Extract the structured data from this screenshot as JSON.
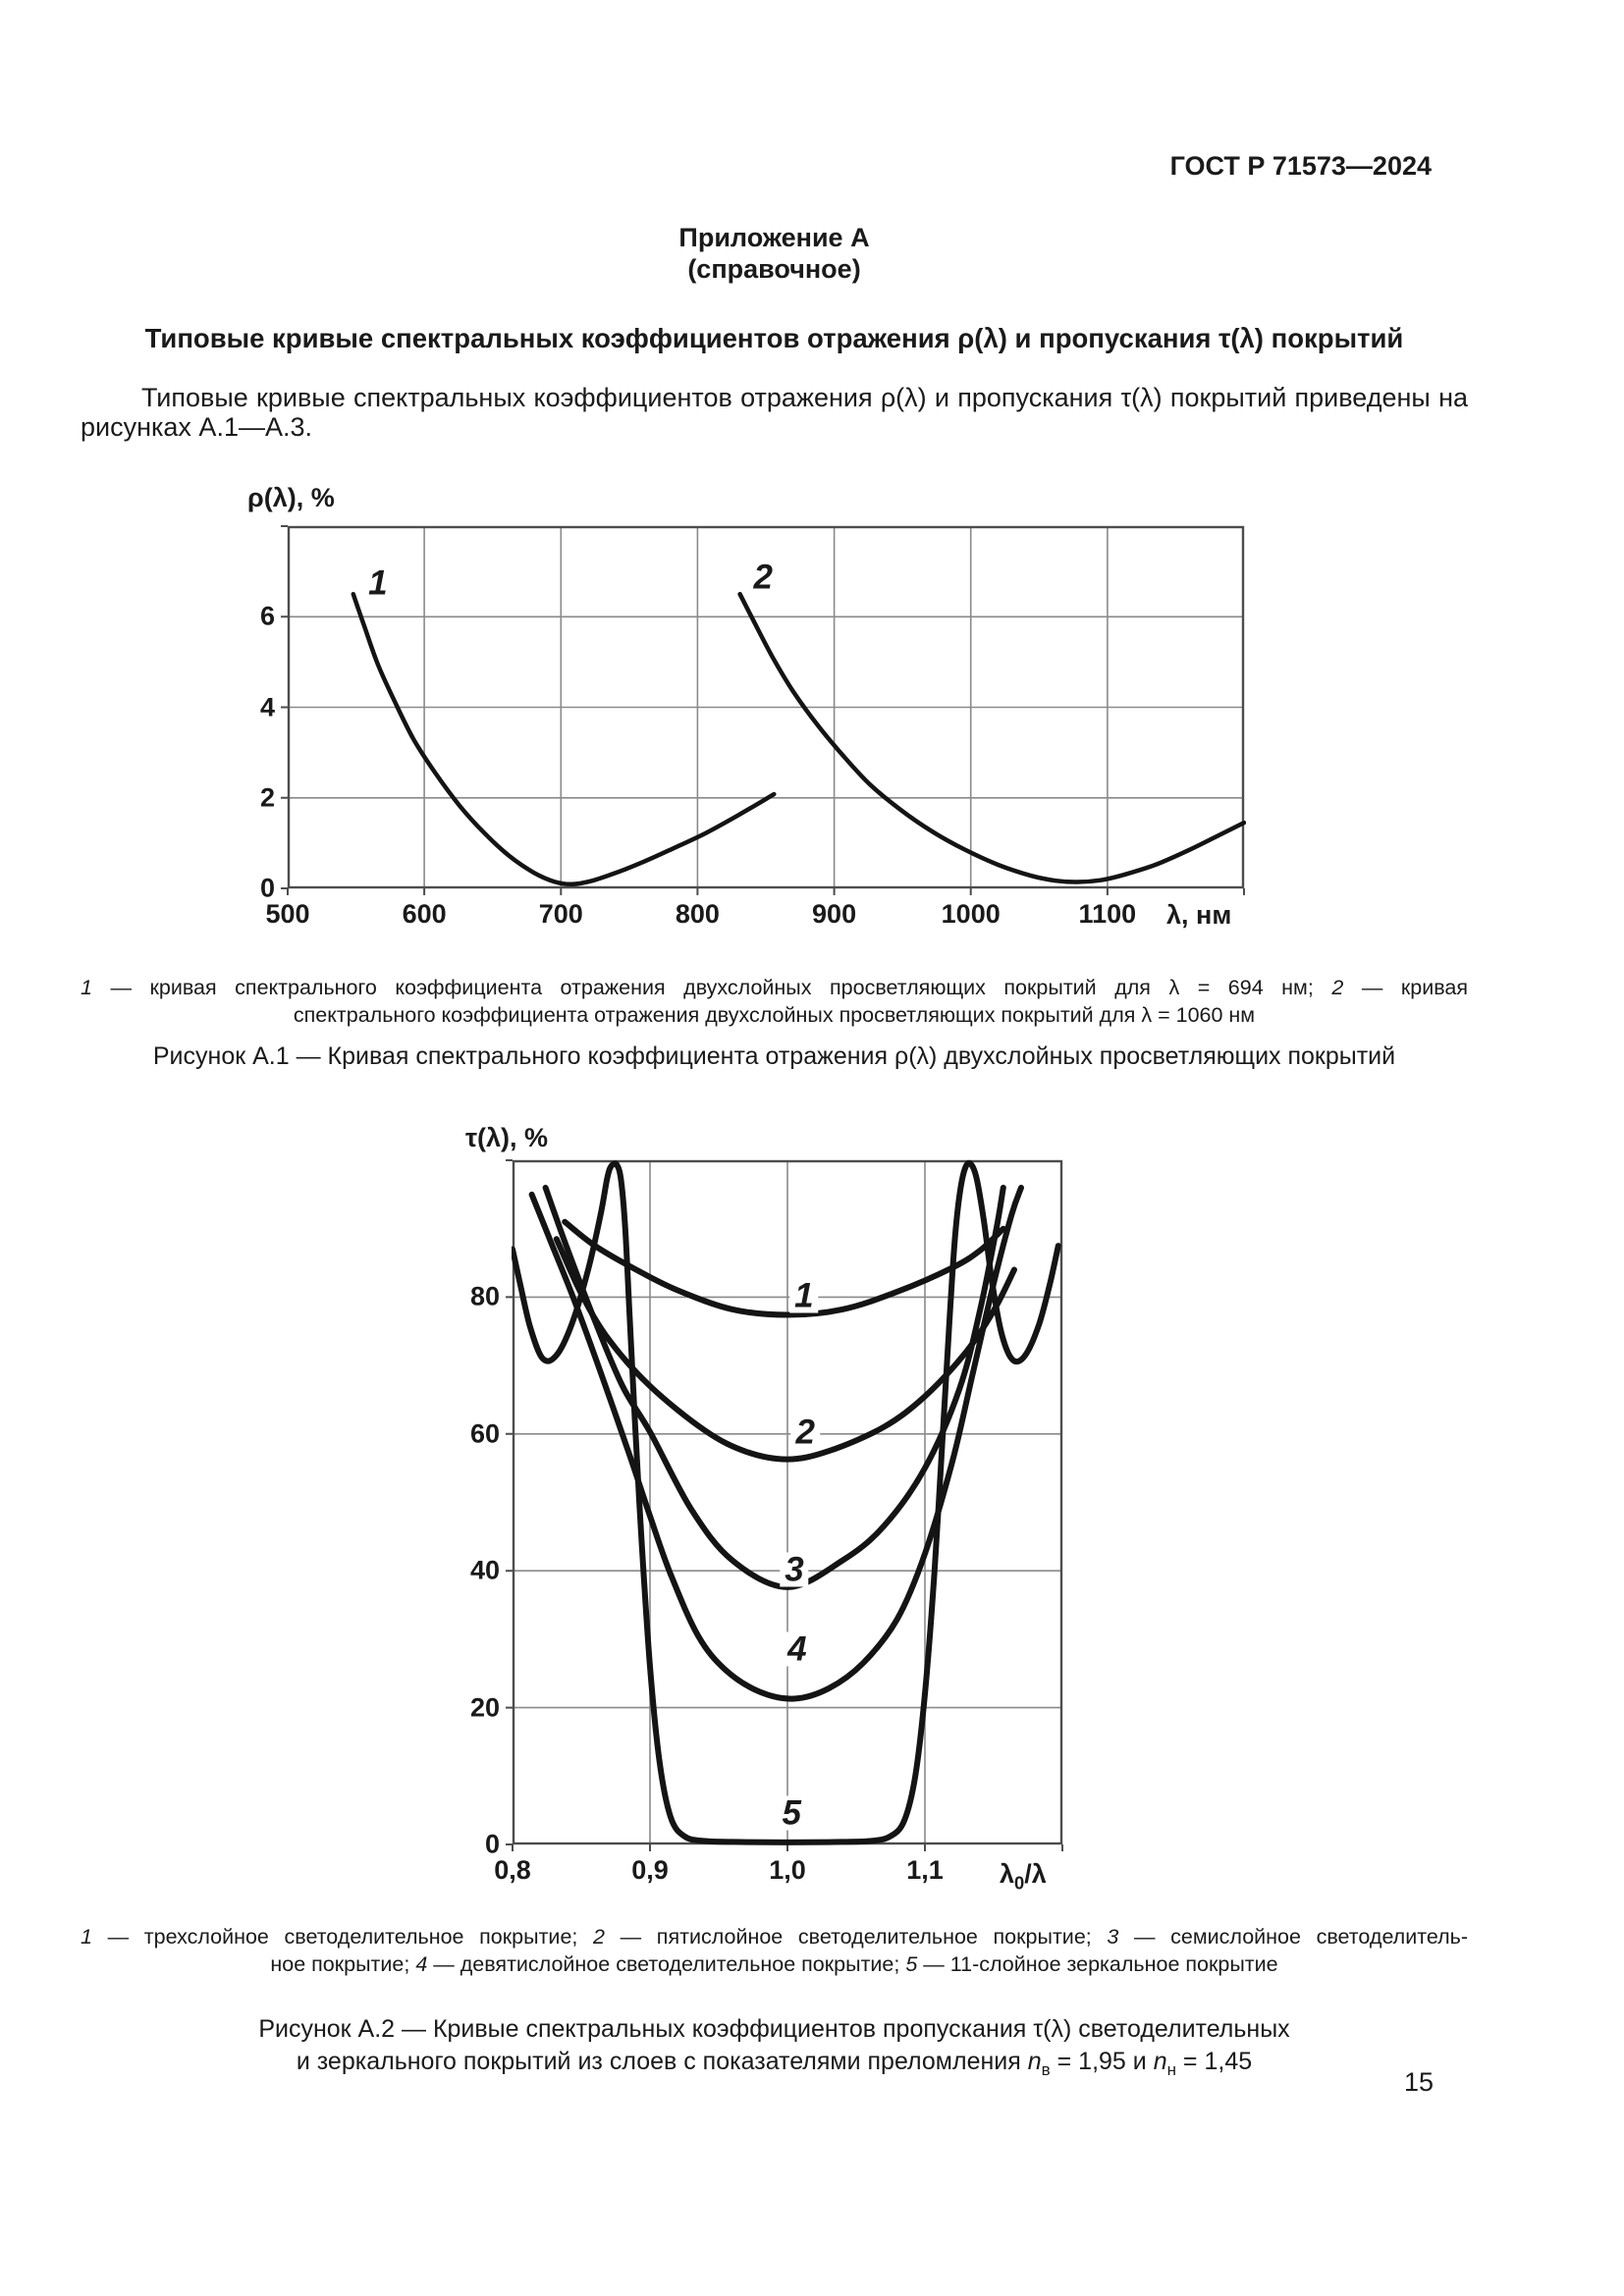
{
  "page": {
    "header": "ГОСТ Р 71573—2024",
    "page_number": "15",
    "appendix": {
      "title": "Приложение А",
      "subtitle": "(справочное)"
    },
    "section_title": "Типовые кривые спектральных коэффициентов отражения ρ(λ) и пропускания τ(λ) покрытий",
    "intro_lines": [
      "Типовые кривые спектральных коэффициентов отражения ρ(λ) и пропускания τ(λ) покрытий приведены на",
      "рисунках А.1—А.3."
    ]
  },
  "figure_a1": {
    "legend": {
      "n1": "1",
      "t1": " — кривая спектрального коэффициента отражения двухслойных просветляющих покрытий для λ = 694 нм; ",
      "n2": "2",
      "t2": " — кривая",
      "line2": "спектрального коэффициента отражения двухслойных просветляющих покрытий для λ = 1060 нм"
    },
    "caption": "Рисунок А.1 — Кривая спектрального коэффициента отражения ρ(λ) двухслойных просветляющих покрытий"
  },
  "figure_a2": {
    "legend": {
      "n1": "1",
      "t1": " — трехслойное светоделительное покрытие; ",
      "n2": "2",
      "t2": " — пятислойное светоделительное покрытие; ",
      "n3": "3",
      "t3": " — семислойное светоделитель-",
      "line2_pre": "ное покрытие; ",
      "n4": "4",
      "t4": " — девятислойное светоделительное покрытие; ",
      "n5": "5",
      "t5": " — 11-слойное зеркальное покрытие"
    },
    "caption_line1": "Рисунок А.2 — Кривые спектральных коэффициентов пропускания τ(λ) светоделительных",
    "caption_line2": {
      "t1": "и зеркального покрытий из слоев с показателями преломления ",
      "n1": "n",
      "s1": "в",
      "t2": " = 1,95 и ",
      "n2": "n",
      "s2": "н",
      "t3": " = 1,45"
    }
  },
  "chart_data": [
    {
      "id": "a1",
      "type": "line",
      "title": "Кривая спектрального коэффициента отражения ρ(λ) двухслойных просветляющих покрытий",
      "ylabel": "ρ(λ), %",
      "xlabel": "λ, нм",
      "xlim": [
        500,
        1200
      ],
      "ylim": [
        0,
        8
      ],
      "grid": true,
      "x_grid": [
        600,
        700,
        800,
        900,
        1000,
        1100
      ],
      "y_grid": [
        2,
        4,
        6
      ],
      "x_ticks": [
        {
          "v": 500,
          "label": "500"
        },
        {
          "v": 600,
          "label": "600"
        },
        {
          "v": 700,
          "label": "700"
        },
        {
          "v": 800,
          "label": "800"
        },
        {
          "v": 900,
          "label": "900"
        },
        {
          "v": 1000,
          "label": "1000"
        },
        {
          "v": 1100,
          "label": "1100"
        }
      ],
      "y_ticks": [
        {
          "v": 0,
          "label": "0"
        },
        {
          "v": 2,
          "label": "2"
        },
        {
          "v": 4,
          "label": "4"
        },
        {
          "v": 6,
          "label": "6"
        }
      ],
      "stroke_width": 4.5,
      "series": [
        {
          "name": "1 — кривая спектрального коэффициента отражения двухслойных просветляющих покрытий для λ = 694 нм",
          "points": [
            [
              548,
              6.5
            ],
            [
              556,
              5.8
            ],
            [
              566,
              4.95
            ],
            [
              578,
              4.15
            ],
            [
              592,
              3.3
            ],
            [
              608,
              2.55
            ],
            [
              626,
              1.82
            ],
            [
              644,
              1.22
            ],
            [
              662,
              0.72
            ],
            [
              680,
              0.35
            ],
            [
              695,
              0.15
            ],
            [
              708,
              0.09
            ],
            [
              722,
              0.16
            ],
            [
              740,
              0.34
            ],
            [
              760,
              0.58
            ],
            [
              782,
              0.88
            ],
            [
              806,
              1.22
            ],
            [
              830,
              1.62
            ],
            [
              856,
              2.08
            ]
          ]
        },
        {
          "name": "2 — кривая спектрального коэффициента отражения двухслойных просветляющих покрытий для λ = 1060 нм",
          "points": [
            [
              831,
              6.5
            ],
            [
              842,
              5.85
            ],
            [
              855,
              5.1
            ],
            [
              870,
              4.35
            ],
            [
              888,
              3.6
            ],
            [
              906,
              2.95
            ],
            [
              926,
              2.3
            ],
            [
              948,
              1.75
            ],
            [
              972,
              1.25
            ],
            [
              996,
              0.85
            ],
            [
              1020,
              0.52
            ],
            [
              1044,
              0.28
            ],
            [
              1062,
              0.17
            ],
            [
              1078,
              0.14
            ],
            [
              1095,
              0.18
            ],
            [
              1112,
              0.3
            ],
            [
              1135,
              0.52
            ],
            [
              1160,
              0.85
            ],
            [
              1182,
              1.18
            ],
            [
              1200,
              1.45
            ]
          ]
        }
      ],
      "curve_labels": [
        {
          "text": "1",
          "x": 566,
          "y": 6.74
        },
        {
          "text": "2",
          "x": 848,
          "y": 6.87
        }
      ]
    },
    {
      "id": "a2",
      "type": "line",
      "title": "Кривые спектральных коэффициентов пропускания τ(λ) светоделительных и зеркального покрытий из слоев с показателями преломления nв = 1,95 и nн = 1,45",
      "ylabel": "τ(λ), %",
      "xlabel_parts": {
        "base": "λ",
        "sub": "0",
        "rest": "/λ"
      },
      "xlim": [
        0.8,
        1.2
      ],
      "ylim": [
        0,
        100
      ],
      "grid": true,
      "x_grid": [
        0.9,
        1.0,
        1.1
      ],
      "y_grid": [
        20,
        40,
        60,
        80
      ],
      "x_ticks": [
        {
          "v": 0.8,
          "label": "0,8"
        },
        {
          "v": 0.9,
          "label": "0,9"
        },
        {
          "v": 1.0,
          "label": "1,0"
        },
        {
          "v": 1.1,
          "label": "1,1"
        }
      ],
      "y_ticks": [
        {
          "v": 0,
          "label": "0"
        },
        {
          "v": 20,
          "label": "20"
        },
        {
          "v": 40,
          "label": "40"
        },
        {
          "v": 60,
          "label": "60"
        },
        {
          "v": 80,
          "label": "80"
        }
      ],
      "stroke_width": 6,
      "series": [
        {
          "name": "1 — трехслойное светоделительное покрытие",
          "points": [
            [
              0.838,
              91
            ],
            [
              0.86,
              87.5
            ],
            [
              0.89,
              84
            ],
            [
              0.92,
              81
            ],
            [
              0.96,
              78.2
            ],
            [
              1.0,
              77.4
            ],
            [
              1.04,
              78.2
            ],
            [
              1.08,
              80.8
            ],
            [
              1.12,
              84.3
            ],
            [
              1.14,
              86.8
            ],
            [
              1.157,
              90
            ]
          ]
        },
        {
          "name": "2 — пятислойное светоделительное покрытие",
          "points": [
            [
              0.832,
              88.5
            ],
            [
              0.85,
              80.5
            ],
            [
              0.87,
              73.8
            ],
            [
              0.9,
              67
            ],
            [
              0.94,
              60.5
            ],
            [
              0.97,
              57.4
            ],
            [
              1.0,
              56.3
            ],
            [
              1.03,
              57.5
            ],
            [
              1.07,
              61
            ],
            [
              1.1,
              65.5
            ],
            [
              1.13,
              72
            ],
            [
              1.15,
              78
            ],
            [
              1.165,
              84
            ]
          ]
        },
        {
          "name": "3 — семислойное светоделительное покрытие",
          "points": [
            [
              0.824,
              96
            ],
            [
              0.84,
              87
            ],
            [
              0.86,
              76.5
            ],
            [
              0.88,
              67
            ],
            [
              0.9,
              60.3
            ],
            [
              0.93,
              49
            ],
            [
              0.96,
              41.5
            ],
            [
              1.0,
              37.6
            ],
            [
              1.04,
              41.5
            ],
            [
              1.07,
              46.5
            ],
            [
              1.1,
              55
            ],
            [
              1.125,
              66.5
            ],
            [
              1.14,
              78
            ],
            [
              1.152,
              90
            ],
            [
              1.157,
              96
            ]
          ]
        },
        {
          "name": "4 — девятислойное светоделительное покрытие",
          "points": [
            [
              0.814,
              95
            ],
            [
              0.828,
              88
            ],
            [
              0.845,
              79.5
            ],
            [
              0.865,
              68.5
            ],
            [
              0.885,
              57
            ],
            [
              0.9,
              48
            ],
            [
              0.915,
              39.5
            ],
            [
              0.935,
              30.5
            ],
            [
              0.955,
              25.5
            ],
            [
              0.98,
              22.3
            ],
            [
              1.005,
              21.3
            ],
            [
              1.03,
              22.8
            ],
            [
              1.055,
              26.5
            ],
            [
              1.08,
              33
            ],
            [
              1.1,
              42.5
            ],
            [
              1.12,
              56
            ],
            [
              1.135,
              69
            ],
            [
              1.15,
              82
            ],
            [
              1.163,
              92
            ],
            [
              1.17,
              96
            ]
          ]
        },
        {
          "name": "5 — 11-слойное зеркальное покрытие",
          "points": [
            [
              0.8,
              87
            ],
            [
              0.806,
              81.5
            ],
            [
              0.813,
              75.5
            ],
            [
              0.822,
              71
            ],
            [
              0.832,
              71.5
            ],
            [
              0.843,
              76
            ],
            [
              0.855,
              84
            ],
            [
              0.864,
              92
            ],
            [
              0.869,
              97.5
            ],
            [
              0.872,
              99.2
            ],
            [
              0.876,
              99.3
            ],
            [
              0.879,
              97
            ],
            [
              0.882,
              90
            ],
            [
              0.885,
              78
            ],
            [
              0.889,
              62
            ],
            [
              0.894,
              44
            ],
            [
              0.9,
              26
            ],
            [
              0.907,
              12
            ],
            [
              0.915,
              4
            ],
            [
              0.925,
              1.2
            ],
            [
              0.94,
              0.5
            ],
            [
              0.97,
              0.35
            ],
            [
              1.0,
              0.3
            ],
            [
              1.03,
              0.35
            ],
            [
              1.06,
              0.5
            ],
            [
              1.075,
              1.2
            ],
            [
              1.085,
              3.5
            ],
            [
              1.093,
              10
            ],
            [
              1.1,
              22
            ],
            [
              1.107,
              40
            ],
            [
              1.113,
              60
            ],
            [
              1.118,
              77
            ],
            [
              1.122,
              89
            ],
            [
              1.126,
              96
            ],
            [
              1.13,
              99.2
            ],
            [
              1.134,
              99.3
            ],
            [
              1.138,
              97
            ],
            [
              1.143,
              91
            ],
            [
              1.149,
              82
            ],
            [
              1.156,
              74.5
            ],
            [
              1.164,
              70.8
            ],
            [
              1.173,
              71.5
            ],
            [
              1.183,
              76
            ],
            [
              1.191,
              82
            ],
            [
              1.197,
              87.5
            ]
          ]
        }
      ],
      "curve_labels": [
        {
          "text": "1",
          "x": 1.012,
          "y": 80.2
        },
        {
          "text": "2",
          "x": 1.013,
          "y": 60.2
        },
        {
          "text": "3",
          "x": 1.005,
          "y": 40.2
        },
        {
          "text": "4",
          "x": 1.007,
          "y": 28.5
        },
        {
          "text": "5",
          "x": 1.003,
          "y": 4.6
        }
      ],
      "colors": {
        "curve": "#141414",
        "grid": "#8a8a8a",
        "border": "#4d4d4d"
      }
    }
  ]
}
